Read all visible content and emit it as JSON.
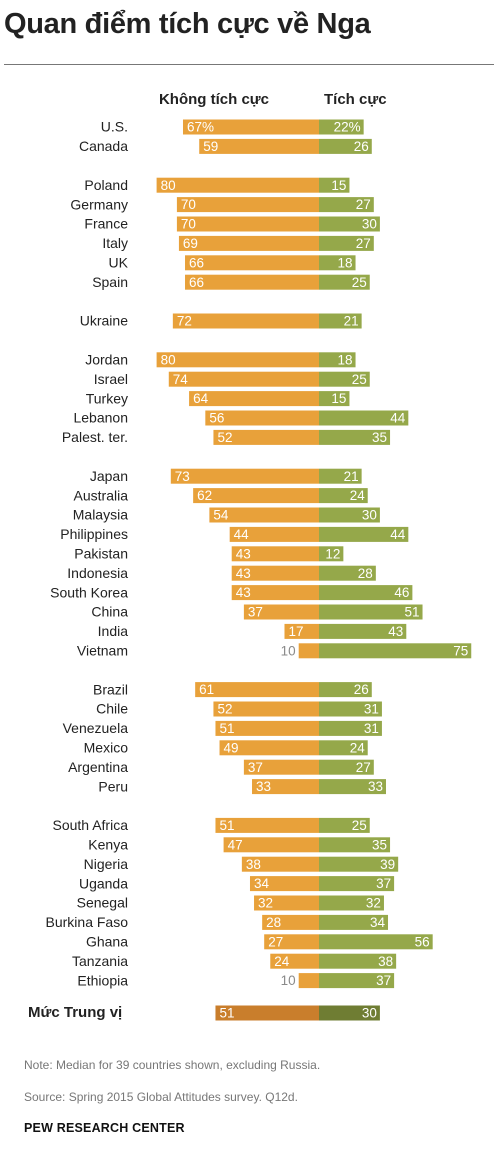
{
  "title": "Quan điểm tích cực về Nga",
  "note": "Note: Median for 39 countries shown, excluding Russia.",
  "source": "Source: Spring 2015 Global Attitudes survey. Q12d.",
  "brand": "PEW RESEARCH CENTER",
  "colors": {
    "unfavorable": "#E8A13A",
    "favorable": "#95A84A",
    "median_unfavorable": "#C97E2C",
    "median_favorable": "#6F7D33",
    "label_inside": "#ffffff",
    "label_outside": "#8a8a8a"
  },
  "chart_data": {
    "type": "bar",
    "orientation": "horizontal-diverging",
    "series": [
      {
        "name": "Không tích cực",
        "key": "unfavorable"
      },
      {
        "name": "Tích cực",
        "key": "favorable"
      }
    ],
    "groups": [
      {
        "rows": [
          {
            "country": "U.S.",
            "unfavorable": 67,
            "favorable": 22,
            "unfavorable_label": "67%",
            "favorable_label": "22%"
          },
          {
            "country": "Canada",
            "unfavorable": 59,
            "favorable": 26
          }
        ]
      },
      {
        "rows": [
          {
            "country": "Poland",
            "unfavorable": 80,
            "favorable": 15
          },
          {
            "country": "Germany",
            "unfavorable": 70,
            "favorable": 27
          },
          {
            "country": "France",
            "unfavorable": 70,
            "favorable": 30
          },
          {
            "country": "Italy",
            "unfavorable": 69,
            "favorable": 27
          },
          {
            "country": "UK",
            "unfavorable": 66,
            "favorable": 18
          },
          {
            "country": "Spain",
            "unfavorable": 66,
            "favorable": 25
          }
        ]
      },
      {
        "rows": [
          {
            "country": "Ukraine",
            "unfavorable": 72,
            "favorable": 21
          }
        ]
      },
      {
        "rows": [
          {
            "country": "Jordan",
            "unfavorable": 80,
            "favorable": 18
          },
          {
            "country": "Israel",
            "unfavorable": 74,
            "favorable": 25
          },
          {
            "country": "Turkey",
            "unfavorable": 64,
            "favorable": 15
          },
          {
            "country": "Lebanon",
            "unfavorable": 56,
            "favorable": 44
          },
          {
            "country": "Palest. ter.",
            "unfavorable": 52,
            "favorable": 35
          }
        ]
      },
      {
        "rows": [
          {
            "country": "Japan",
            "unfavorable": 73,
            "favorable": 21
          },
          {
            "country": "Australia",
            "unfavorable": 62,
            "favorable": 24
          },
          {
            "country": "Malaysia",
            "unfavorable": 54,
            "favorable": 30
          },
          {
            "country": "Philippines",
            "unfavorable": 44,
            "favorable": 44
          },
          {
            "country": "Pakistan",
            "unfavorable": 43,
            "favorable": 12
          },
          {
            "country": "Indonesia",
            "unfavorable": 43,
            "favorable": 28
          },
          {
            "country": "South Korea",
            "unfavorable": 43,
            "favorable": 46
          },
          {
            "country": "China",
            "unfavorable": 37,
            "favorable": 51
          },
          {
            "country": "India",
            "unfavorable": 17,
            "favorable": 43
          },
          {
            "country": "Vietnam",
            "unfavorable": 10,
            "favorable": 75
          }
        ]
      },
      {
        "rows": [
          {
            "country": "Brazil",
            "unfavorable": 61,
            "favorable": 26
          },
          {
            "country": "Chile",
            "unfavorable": 52,
            "favorable": 31
          },
          {
            "country": "Venezuela",
            "unfavorable": 51,
            "favorable": 31
          },
          {
            "country": "Mexico",
            "unfavorable": 49,
            "favorable": 24
          },
          {
            "country": "Argentina",
            "unfavorable": 37,
            "favorable": 27
          },
          {
            "country": "Peru",
            "unfavorable": 33,
            "favorable": 33
          }
        ]
      },
      {
        "rows": [
          {
            "country": "South Africa",
            "unfavorable": 51,
            "favorable": 25
          },
          {
            "country": "Kenya",
            "unfavorable": 47,
            "favorable": 35
          },
          {
            "country": "Nigeria",
            "unfavorable": 38,
            "favorable": 39
          },
          {
            "country": "Uganda",
            "unfavorable": 34,
            "favorable": 37
          },
          {
            "country": "Senegal",
            "unfavorable": 32,
            "favorable": 32
          },
          {
            "country": "Burkina Faso",
            "unfavorable": 28,
            "favorable": 34
          },
          {
            "country": "Ghana",
            "unfavorable": 27,
            "favorable": 56
          },
          {
            "country": "Tanzania",
            "unfavorable": 24,
            "favorable": 38
          },
          {
            "country": "Ethiopia",
            "unfavorable": 10,
            "favorable": 37
          }
        ]
      }
    ],
    "median": {
      "label": "Mức Trung vị",
      "unfavorable": 51,
      "favorable": 30
    },
    "legend": "top-center",
    "grid": false
  }
}
